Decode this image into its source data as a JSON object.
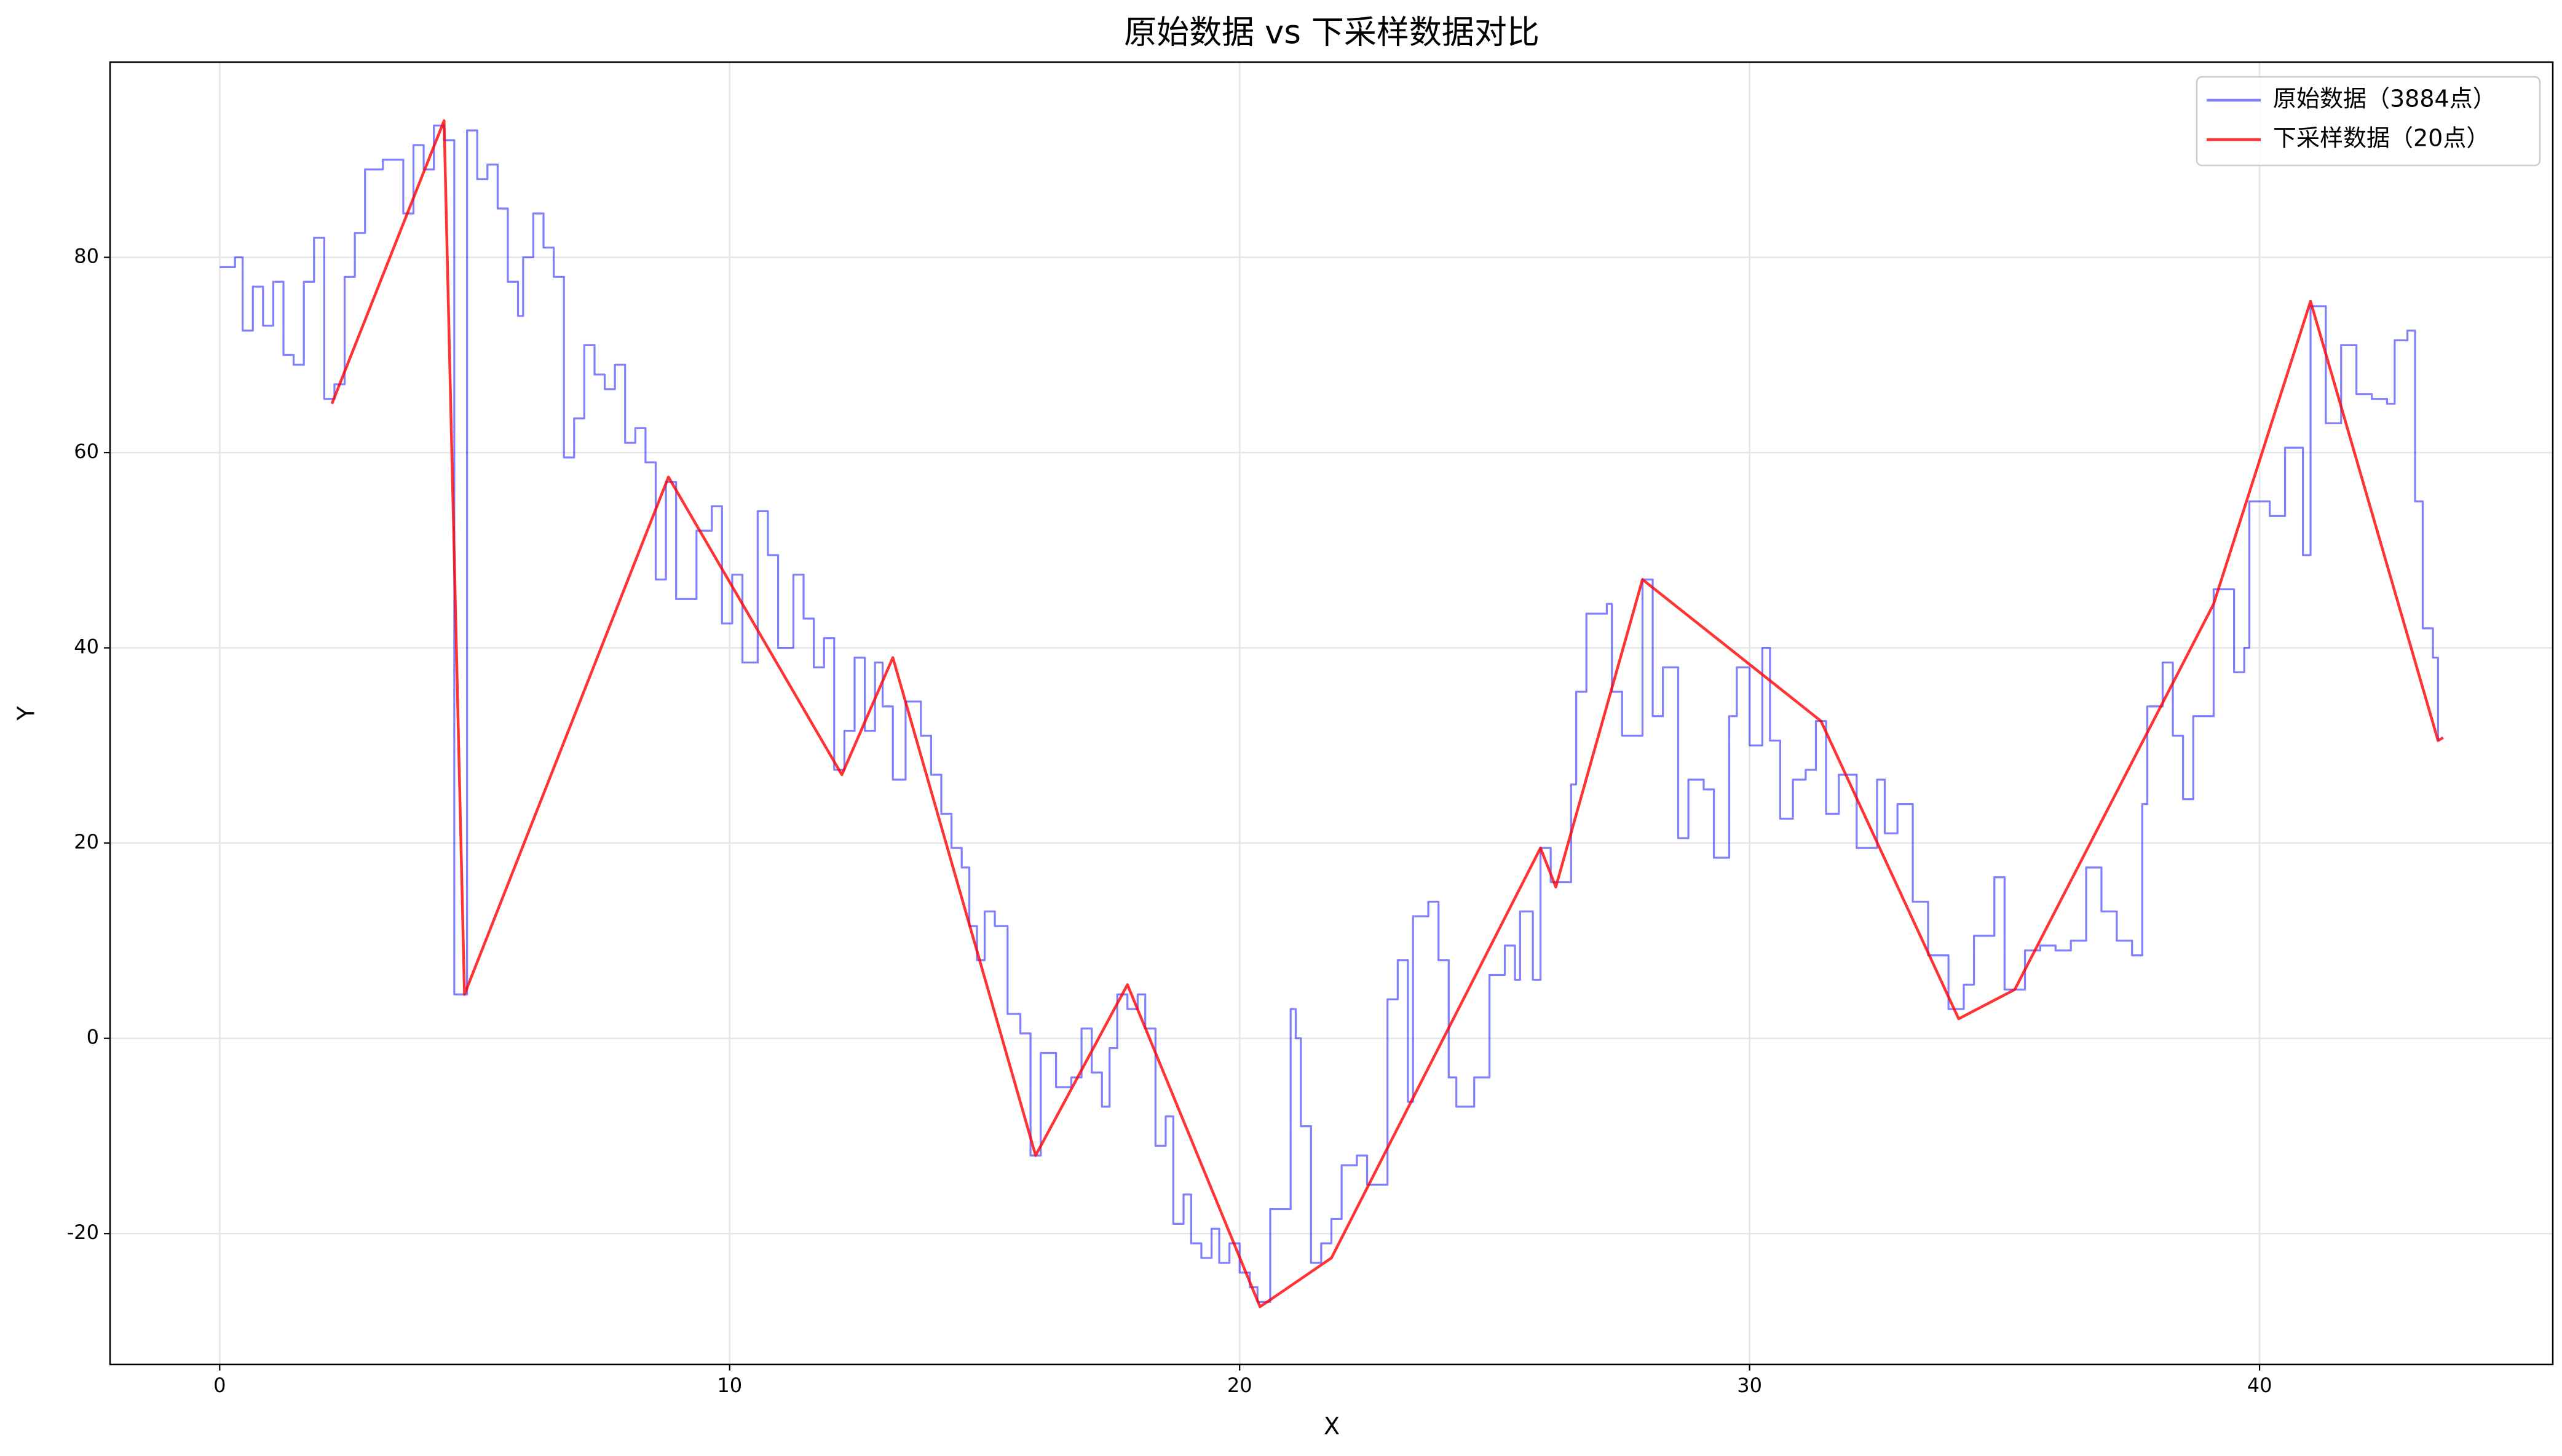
{
  "chart_data": {
    "type": "line",
    "title": "原始数据 vs 下采样数据对比",
    "x_label": "X",
    "y_label": "Y",
    "xlim": [
      -2.15,
      45.75
    ],
    "ylim": [
      -33.4,
      100
    ],
    "xticks": [
      0,
      10,
      20,
      30,
      40
    ],
    "yticks": [
      -20,
      0,
      20,
      40,
      60,
      80
    ],
    "grid": true,
    "legend": "upper right",
    "series": [
      {
        "name": "原始数据（3884点）",
        "color": "#0000ff",
        "alpha": 0.5,
        "drawstyle": "steps-post",
        "x": [
          0,
          0.3,
          0.45,
          0.65,
          0.85,
          1.05,
          1.25,
          1.45,
          1.65,
          1.85,
          2.05,
          2.25,
          2.45,
          2.65,
          2.85,
          3.2,
          3.6,
          3.8,
          4.0,
          4.2,
          4.4,
          4.6,
          4.85,
          5.05,
          5.25,
          5.45,
          5.65,
          5.85,
          5.95,
          6.15,
          6.35,
          6.55,
          6.75,
          6.95,
          7.15,
          7.35,
          7.55,
          7.75,
          7.95,
          8.15,
          8.35,
          8.55,
          8.75,
          8.95,
          9.35,
          9.65,
          9.85,
          10.05,
          10.25,
          10.55,
          10.75,
          10.95,
          11.25,
          11.45,
          11.65,
          11.85,
          12.05,
          12.25,
          12.45,
          12.65,
          12.85,
          13.0,
          13.2,
          13.45,
          13.75,
          13.95,
          14.15,
          14.35,
          14.55,
          14.7,
          14.85,
          15.0,
          15.2,
          15.45,
          15.7,
          15.9,
          16.1,
          16.4,
          16.7,
          16.9,
          17.1,
          17.3,
          17.45,
          17.6,
          17.8,
          18.0,
          18.15,
          18.35,
          18.55,
          18.7,
          18.9,
          19.05,
          19.25,
          19.45,
          19.6,
          19.8,
          20.0,
          20.2,
          20.35,
          20.6,
          21.0,
          21.1,
          21.2,
          21.4,
          21.6,
          21.8,
          22.0,
          22.3,
          22.5,
          22.9,
          23.1,
          23.3,
          23.4,
          23.7,
          23.9,
          24.1,
          24.25,
          24.6,
          24.9,
          25.2,
          25.4,
          25.5,
          25.75,
          25.9,
          26.1,
          26.5,
          26.6,
          26.8,
          27.2,
          27.3,
          27.5,
          27.9,
          28.1,
          28.3,
          28.6,
          28.8,
          29.1,
          29.3,
          29.6,
          29.75,
          30.0,
          30.25,
          30.4,
          30.6,
          30.85,
          31.1,
          31.3,
          31.5,
          31.75,
          32.1,
          32.5,
          32.65,
          32.9,
          33.2,
          33.5,
          33.9,
          34.2,
          34.4,
          34.8,
          35.0,
          35.4,
          35.7,
          36.0,
          36.3,
          36.6,
          36.9,
          37.2,
          37.5,
          37.7,
          37.8,
          38.1,
          38.3,
          38.5,
          38.7,
          39.1,
          39.5,
          39.7,
          39.8,
          40.2,
          40.5,
          40.85,
          41.0,
          41.3,
          41.6,
          41.9,
          42.2,
          42.5,
          42.65,
          42.9,
          43.05,
          43.2,
          43.4,
          43.5
        ],
        "values": [
          79,
          80,
          72.5,
          77,
          73,
          77.5,
          70,
          69,
          77.5,
          82,
          65.5,
          67,
          78,
          82.5,
          89,
          90,
          84.5,
          91.5,
          89,
          93.5,
          92,
          4.5,
          93,
          88,
          89.5,
          85,
          77.5,
          74,
          80,
          84.5,
          81,
          78,
          59.5,
          63.5,
          71,
          68,
          66.5,
          69,
          61,
          62.5,
          59,
          47,
          57,
          45,
          52,
          54.5,
          42.5,
          47.5,
          38.5,
          54,
          49.5,
          40,
          47.5,
          43,
          38,
          41,
          27.5,
          31.5,
          39,
          31.5,
          38.5,
          34,
          26.5,
          34.5,
          31,
          27,
          23,
          19.5,
          17.5,
          11.5,
          8,
          13,
          11.5,
          2.5,
          0.5,
          -12,
          -1.5,
          -5,
          -4,
          1,
          -3.5,
          -7,
          -1,
          4.5,
          3,
          4.5,
          1,
          -11,
          -8,
          -19,
          -16,
          -21,
          -22.5,
          -19.5,
          -23,
          -21,
          -24,
          -25.5,
          -27,
          -17.5,
          3,
          0,
          -9,
          -23,
          -21,
          -18.5,
          -13,
          -12,
          -15,
          4,
          8,
          -6.5,
          12.5,
          14,
          8,
          -4,
          -7,
          -4,
          6.5,
          9.5,
          6,
          13,
          6,
          19.5,
          16,
          26,
          35.5,
          43.5,
          44.5,
          35.5,
          31,
          47,
          33,
          38,
          20.5,
          26.5,
          25.5,
          18.5,
          33,
          38,
          30,
          40,
          30.5,
          22.5,
          26.5,
          27.5,
          32.5,
          23,
          27,
          19.5,
          26.5,
          21,
          24,
          14,
          8.5,
          3,
          5.5,
          10.5,
          16.5,
          5,
          9,
          9.5,
          9,
          10,
          17.5,
          13,
          10,
          8.5,
          24,
          34,
          38.5,
          31,
          24.5,
          33,
          46,
          37.5,
          40,
          55,
          53.5,
          60.5,
          49.5,
          75,
          63,
          71,
          66,
          65.5,
          65,
          71.5,
          72.5,
          55,
          42,
          39,
          30.5
        ]
      },
      {
        "name": "下采样数据（20点）",
        "color": "#ff0000",
        "alpha": 0.8,
        "drawstyle": "default",
        "x": [
          2.2,
          4.4,
          4.8,
          8.8,
          12.2,
          13.2,
          16.0,
          17.8,
          20.4,
          21.8,
          25.9,
          26.2,
          27.9,
          31.4,
          34.1,
          35.2,
          39.1,
          41.0,
          43.5,
          43.6
        ],
        "values": [
          65,
          94,
          4.5,
          57.5,
          27,
          39,
          -12,
          5.5,
          -27.5,
          -22.5,
          19.5,
          15.5,
          47,
          32.5,
          2,
          5,
          44.5,
          75.5,
          30.5,
          30.8
        ]
      }
    ]
  }
}
